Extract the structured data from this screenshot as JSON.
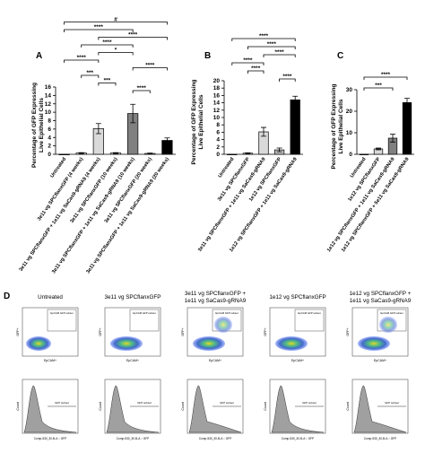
{
  "chart_data": [
    {
      "type": "bar",
      "panel_label": "A",
      "y_label": "Percentage of GFP Expressing Live Epithelial Cells",
      "categories": [
        "Untreated",
        "3e11 vg SPCflanxGFP (4 weeks)",
        "3e11 vg SPCflanxGFP + 1e11 vg SaCas9-gRNA9 (4 weeks)",
        "3e11 vg SPCflanxGFP (10 weeks)",
        "3e11 vg SPCflanxGFP + 1e11 vg SaCas9-gRNA9 (10 weeks)",
        "3e11 vg SPCflanxGFP (20 weeks)",
        "3e11 vg SPCflanxGFP + 1e11 vg SaCas9-gRNA9 (20 weeks)"
      ],
      "values": [
        0,
        0.3,
        6.1,
        0.3,
        9.7,
        0.2,
        3.3
      ],
      "errors": [
        0,
        0.1,
        1.2,
        0.1,
        2.2,
        0.1,
        0.6
      ],
      "colors": [
        "#ffffff",
        "#ffffff",
        "#d9d9d9",
        "#ffffff",
        "#808080",
        "#ffffff",
        "#000000"
      ],
      "ylim": [
        0,
        16
      ],
      "yticks": [
        0,
        2,
        4,
        6,
        8,
        10,
        12,
        14,
        16
      ],
      "brackets": [
        {
          "from": 0,
          "to": 6,
          "label": "#"
        },
        {
          "from": 0,
          "to": 4,
          "label": "****"
        },
        {
          "from": 2,
          "to": 6,
          "label": "****"
        },
        {
          "from": 1,
          "to": 4,
          "label": "****"
        },
        {
          "from": 2,
          "to": 4,
          "label": "*"
        },
        {
          "from": 0,
          "to": 2,
          "label": "****"
        },
        {
          "from": 4,
          "to": 6,
          "label": "****"
        },
        {
          "from": 1,
          "to": 2,
          "label": "***"
        },
        {
          "from": 2,
          "to": 3,
          "label": "***"
        },
        {
          "from": 4,
          "to": 5,
          "label": "****"
        }
      ]
    },
    {
      "type": "bar",
      "panel_label": "B",
      "y_label": "Percentage of GFP Expressing Live Epithelial Cells",
      "categories": [
        "Untreated",
        "3e11 vg SPCflanxGFP",
        "3e11 vg SPCflanxGFP + 1e11 vg SaCas9-gRNA9",
        "1e12 vg SPCflanxGFP",
        "1e12 vg SPCflanxGFP + 1e11 vg SaCas9-gRNA9"
      ],
      "values": [
        0,
        0.3,
        6.1,
        1.2,
        14.8
      ],
      "errors": [
        0,
        0.1,
        1.2,
        0.5,
        1.0
      ],
      "colors": [
        "#ffffff",
        "#ffffff",
        "#d9d9d9",
        "#bfbfbf",
        "#000000"
      ],
      "ylim": [
        0,
        20
      ],
      "yticks": [
        0,
        2,
        4,
        6,
        8,
        10,
        12,
        14,
        16,
        18,
        20
      ],
      "brackets": [
        {
          "from": 0,
          "to": 4,
          "label": "****"
        },
        {
          "from": 1,
          "to": 4,
          "label": "****"
        },
        {
          "from": 2,
          "to": 4,
          "label": "****"
        },
        {
          "from": 0,
          "to": 2,
          "label": "****"
        },
        {
          "from": 1,
          "to": 2,
          "label": "****"
        },
        {
          "from": 3,
          "to": 4,
          "label": "****"
        }
      ]
    },
    {
      "type": "bar",
      "panel_label": "C",
      "y_label": "Percentage of GFP Expressing Live Epithelial Cells",
      "categories": [
        "Untreated",
        "1e12 vg SPCflanxGFP",
        "1e12 vg SPCflanxGFP + 1e11 vg SaCas9-gRNA9",
        "1e12 vg SPCflanxGFP + 5e11 vg SaCas9-gRNA9"
      ],
      "values": [
        0,
        2.5,
        7.5,
        24
      ],
      "errors": [
        0,
        0.4,
        1.8,
        2.0
      ],
      "colors": [
        "#ffffff",
        "#d9d9d9",
        "#808080",
        "#000000"
      ],
      "ylim": [
        0,
        30
      ],
      "yticks": [
        0,
        10,
        20,
        30
      ],
      "brackets": [
        {
          "from": 0,
          "to": 3,
          "label": "****"
        },
        {
          "from": 0,
          "to": 2,
          "label": "***"
        }
      ]
    }
  ],
  "panel_d": {
    "label": "D",
    "columns": [
      "Untreated",
      "3e11 vg SPCflanxGFP",
      "3e11 vg SPCflanxGFP + 1e11 vg SaCas9-gRNA9",
      "1e12 vg SPCflanxGFP",
      "1e12 vg SPCflanxGFP + 1e11 vg SaCas9-gRNA9"
    ],
    "scatter_y_label": "GFP+",
    "scatter_x_label": "EpCAM+",
    "gate_label": "EpCAM GFP subset",
    "hist_y_label": "Count",
    "hist_x_label": "Comp-530_30-B-A :: GFP",
    "hist_gate_label": "GFP subset"
  }
}
